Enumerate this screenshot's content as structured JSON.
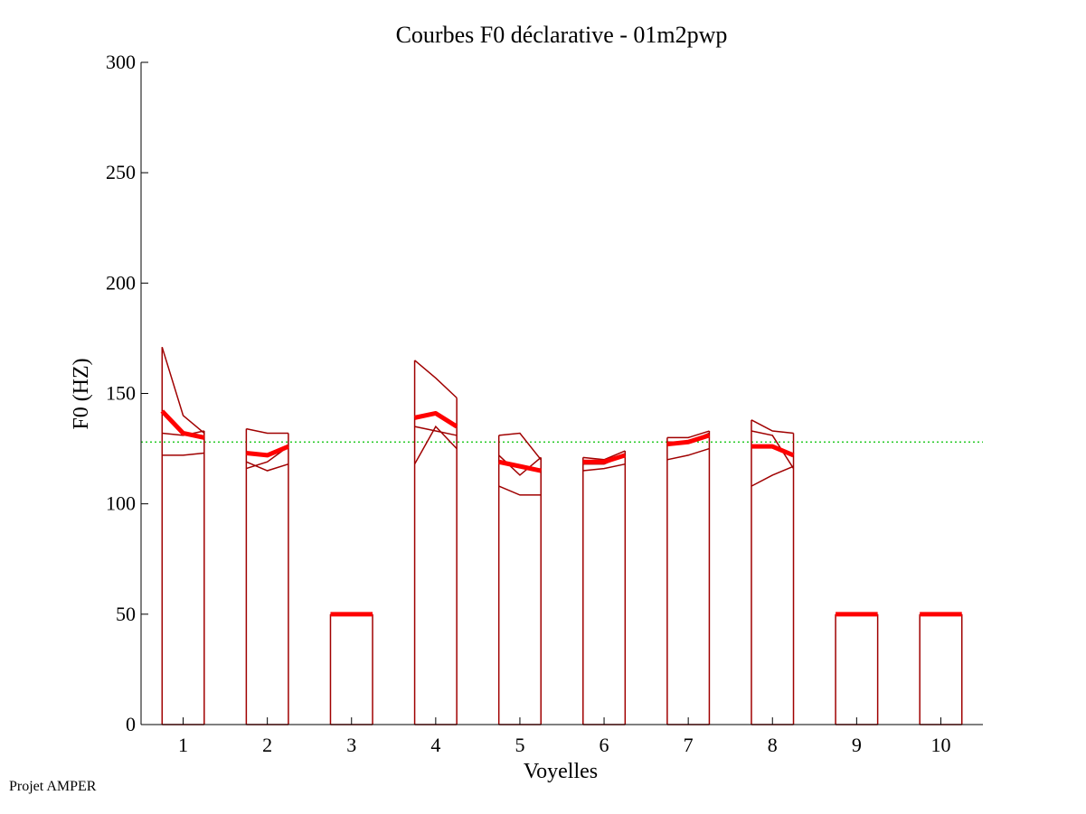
{
  "chart_data": {
    "type": "line",
    "title": "Courbes F0 déclarative - 01m2pwp",
    "xlabel": "Voyelles",
    "ylabel": "F0 (HZ)",
    "ylim": [
      0,
      300
    ],
    "yticks": [
      0,
      50,
      100,
      150,
      200,
      250,
      300
    ],
    "categories": [
      "1",
      "2",
      "3",
      "4",
      "5",
      "6",
      "7",
      "8",
      "9",
      "10"
    ],
    "xlim": [
      0.5,
      10.5
    ],
    "reference_line": 128,
    "grid": false,
    "colors": {
      "box": "#a00000",
      "mean": "#ff0000",
      "reference": "#00c000",
      "axis": "#000000"
    },
    "vowels": [
      {
        "label": "1",
        "curves": [
          [
            171,
            140,
            132
          ],
          [
            132,
            131,
            133
          ],
          [
            122,
            122,
            123
          ]
        ],
        "mean": [
          142,
          132,
          130
        ]
      },
      {
        "label": "2",
        "curves": [
          [
            134,
            132,
            132
          ],
          [
            119,
            115,
            118
          ],
          [
            116,
            119,
            126
          ]
        ],
        "mean": [
          123,
          122,
          126
        ]
      },
      {
        "label": "3",
        "curves": [],
        "mean": [
          50,
          50,
          50
        ]
      },
      {
        "label": "4",
        "curves": [
          [
            165,
            157,
            148
          ],
          [
            135,
            133,
            131
          ],
          [
            118,
            135,
            125
          ]
        ],
        "mean": [
          139,
          141,
          135
        ]
      },
      {
        "label": "5",
        "curves": [
          [
            131,
            132,
            120
          ],
          [
            108,
            104,
            104
          ],
          [
            122,
            113,
            121
          ]
        ],
        "mean": [
          119,
          117,
          115
        ]
      },
      {
        "label": "6",
        "curves": [
          [
            121,
            120,
            124
          ],
          [
            115,
            116,
            118
          ],
          [
            118,
            118,
            122
          ]
        ],
        "mean": [
          119,
          119,
          122
        ]
      },
      {
        "label": "7",
        "curves": [
          [
            130,
            130,
            133
          ],
          [
            120,
            122,
            125
          ],
          [
            128,
            128,
            132
          ]
        ],
        "mean": [
          127,
          128,
          131
        ]
      },
      {
        "label": "8",
        "curves": [
          [
            138,
            133,
            132
          ],
          [
            133,
            131,
            116
          ],
          [
            108,
            113,
            117
          ]
        ],
        "mean": [
          126,
          126,
          122
        ]
      },
      {
        "label": "9",
        "curves": [],
        "mean": [
          50,
          50,
          50
        ]
      },
      {
        "label": "10",
        "curves": [],
        "mean": [
          50,
          50,
          50
        ]
      }
    ]
  },
  "footer": "Projet AMPER"
}
